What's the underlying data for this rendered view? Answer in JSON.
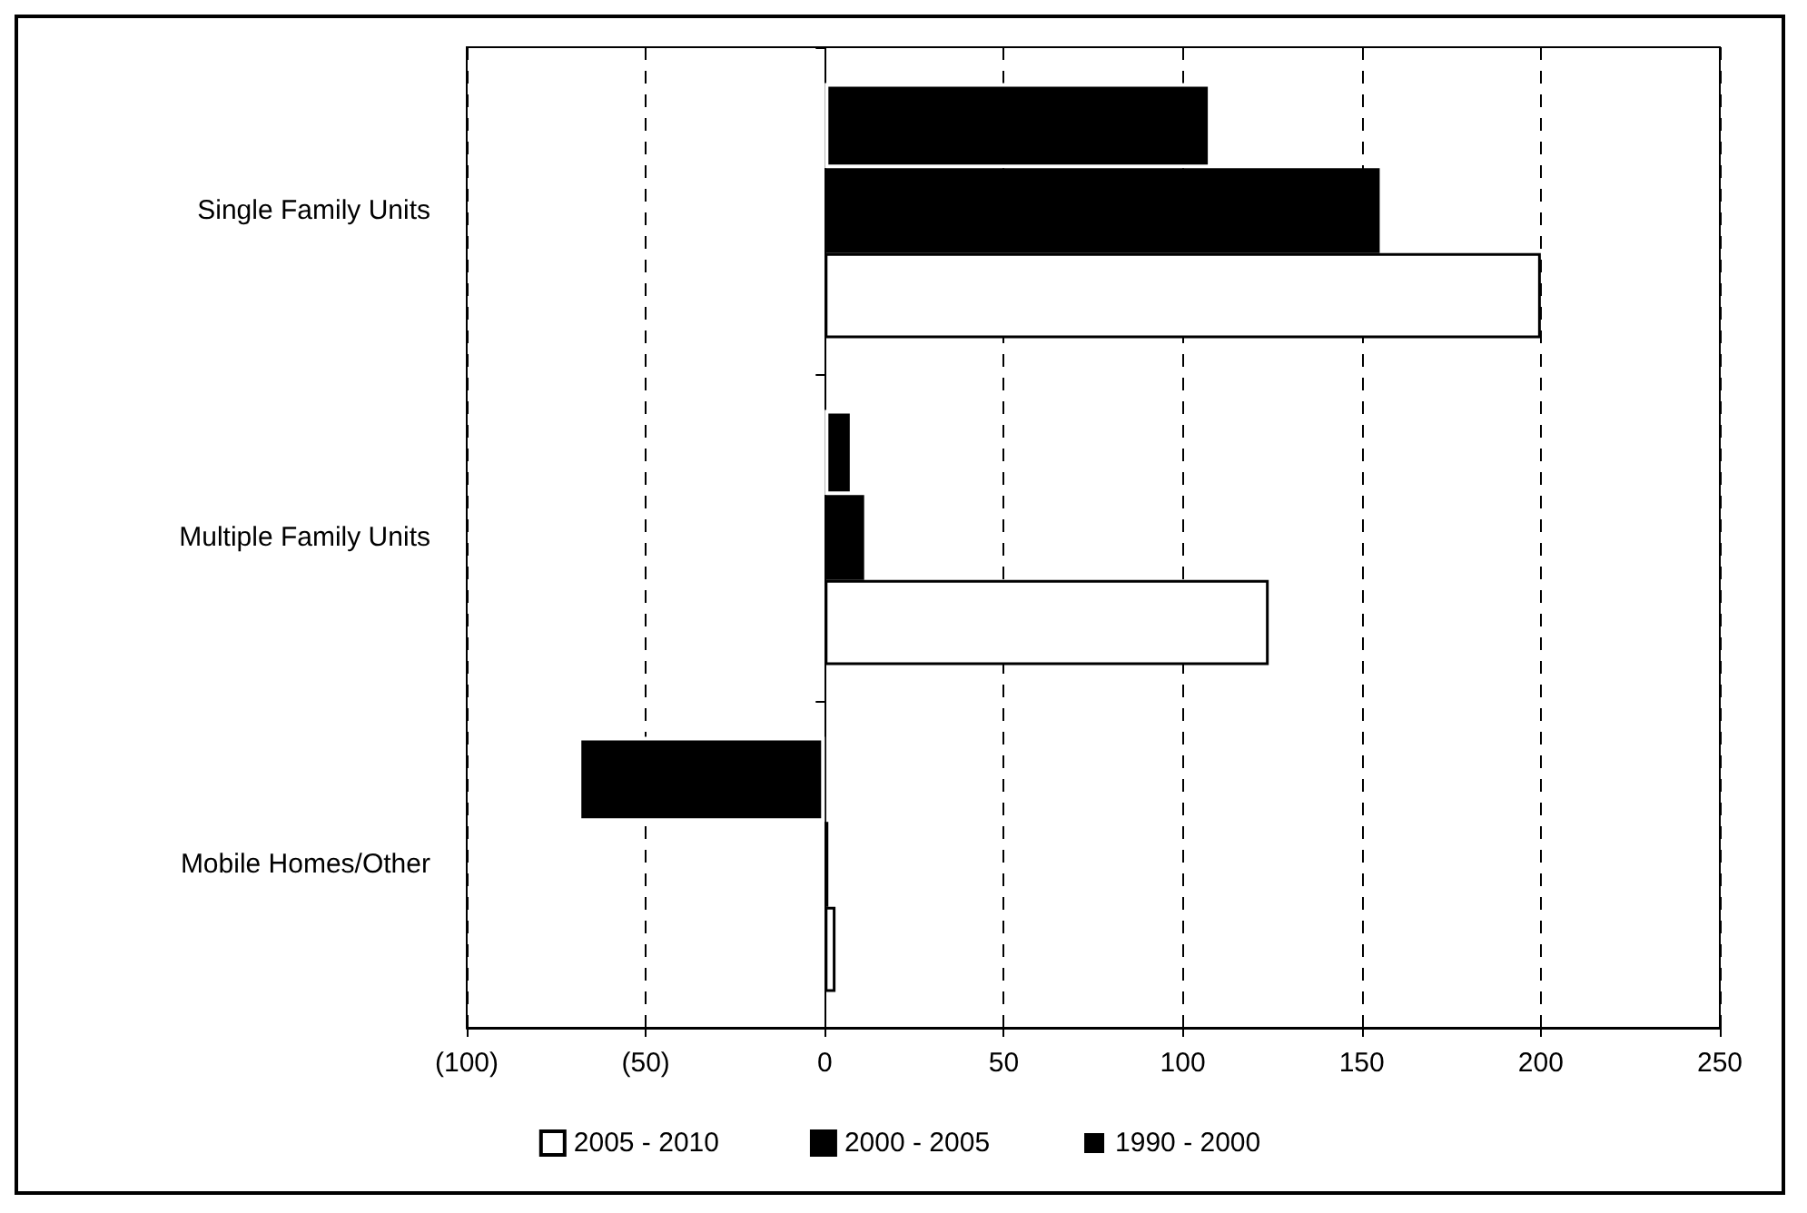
{
  "chart_data": {
    "type": "bar",
    "orientation": "horizontal",
    "categories": [
      "Single Family Units",
      "Multiple Family Units",
      "Mobile Homes/Other"
    ],
    "series": [
      {
        "name": "2005 - 2010",
        "color": "#ffffff",
        "values": [
          200,
          124,
          3
        ]
      },
      {
        "name": "2000 - 2005",
        "color": "#000000",
        "values": [
          155,
          11,
          1
        ]
      },
      {
        "name": "1990 - 2000",
        "color": "#000000",
        "values": [
          108,
          8,
          -69
        ]
      }
    ],
    "xlim": [
      -100,
      250
    ],
    "xticks": [
      {
        "value": -100,
        "label": "(100)"
      },
      {
        "value": -50,
        "label": "(50)"
      },
      0,
      50,
      100,
      150,
      200,
      250
    ],
    "grid": "x",
    "legend": "bottom"
  }
}
